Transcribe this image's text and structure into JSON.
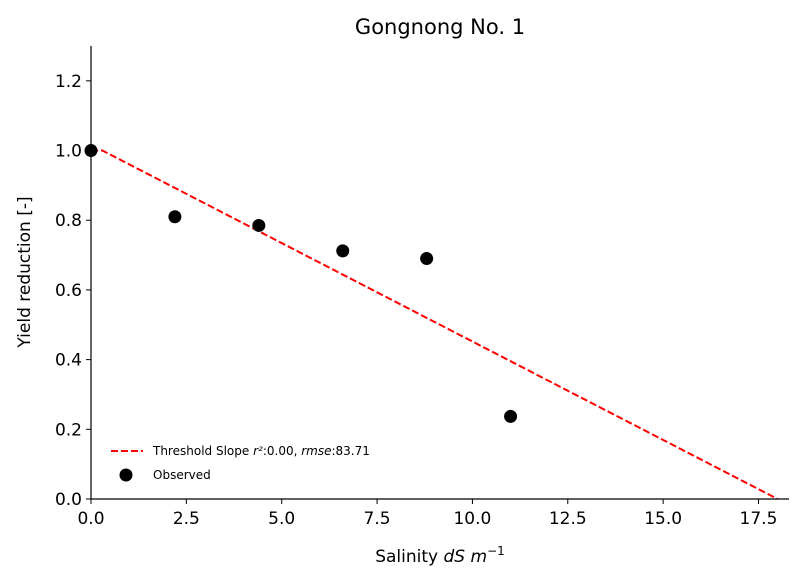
{
  "chart_data": {
    "type": "scatter",
    "title": "Gongnong No. 1",
    "xlabel": {
      "prefix": "Salinity ",
      "unit": "dS m",
      "exponent": "−1"
    },
    "ylabel": "Yield reduction [-]",
    "xlim": [
      0,
      18.3
    ],
    "ylim": [
      0,
      1.3
    ],
    "xticks": [
      0.0,
      2.5,
      5.0,
      7.5,
      10.0,
      12.5,
      15.0,
      17.5
    ],
    "xtick_labels": [
      "0.0",
      "2.5",
      "5.0",
      "7.5",
      "10.0",
      "12.5",
      "15.0",
      "17.5"
    ],
    "yticks": [
      0.0,
      0.2,
      0.4,
      0.6,
      0.8,
      1.0,
      1.2
    ],
    "ytick_labels": [
      "0.0",
      "0.2",
      "0.4",
      "0.6",
      "0.8",
      "1.0",
      "1.2"
    ],
    "series": [
      {
        "name": "Observed",
        "kind": "scatter",
        "color": "#000000",
        "x": [
          0.0,
          2.2,
          4.4,
          6.6,
          8.8,
          11.0
        ],
        "y": [
          1.0,
          0.81,
          0.785,
          0.712,
          0.69,
          0.237
        ]
      },
      {
        "name": "Threshold Slope",
        "kind": "line",
        "style": "dashed",
        "color": "#ff0000",
        "x": [
          0.0,
          0.3,
          18.0
        ],
        "y": [
          1.0,
          1.0,
          0.0
        ]
      }
    ],
    "legend": {
      "placement": "lower-left",
      "entries": [
        {
          "series": "Threshold Slope",
          "label": "Threshold Slope",
          "r2_label": "r²",
          "r2": ":0.00, ",
          "rmse_label": "rmse",
          "rmse": ":83.71"
        },
        {
          "series": "Observed",
          "label": "Observed"
        }
      ]
    },
    "grid": false
  }
}
